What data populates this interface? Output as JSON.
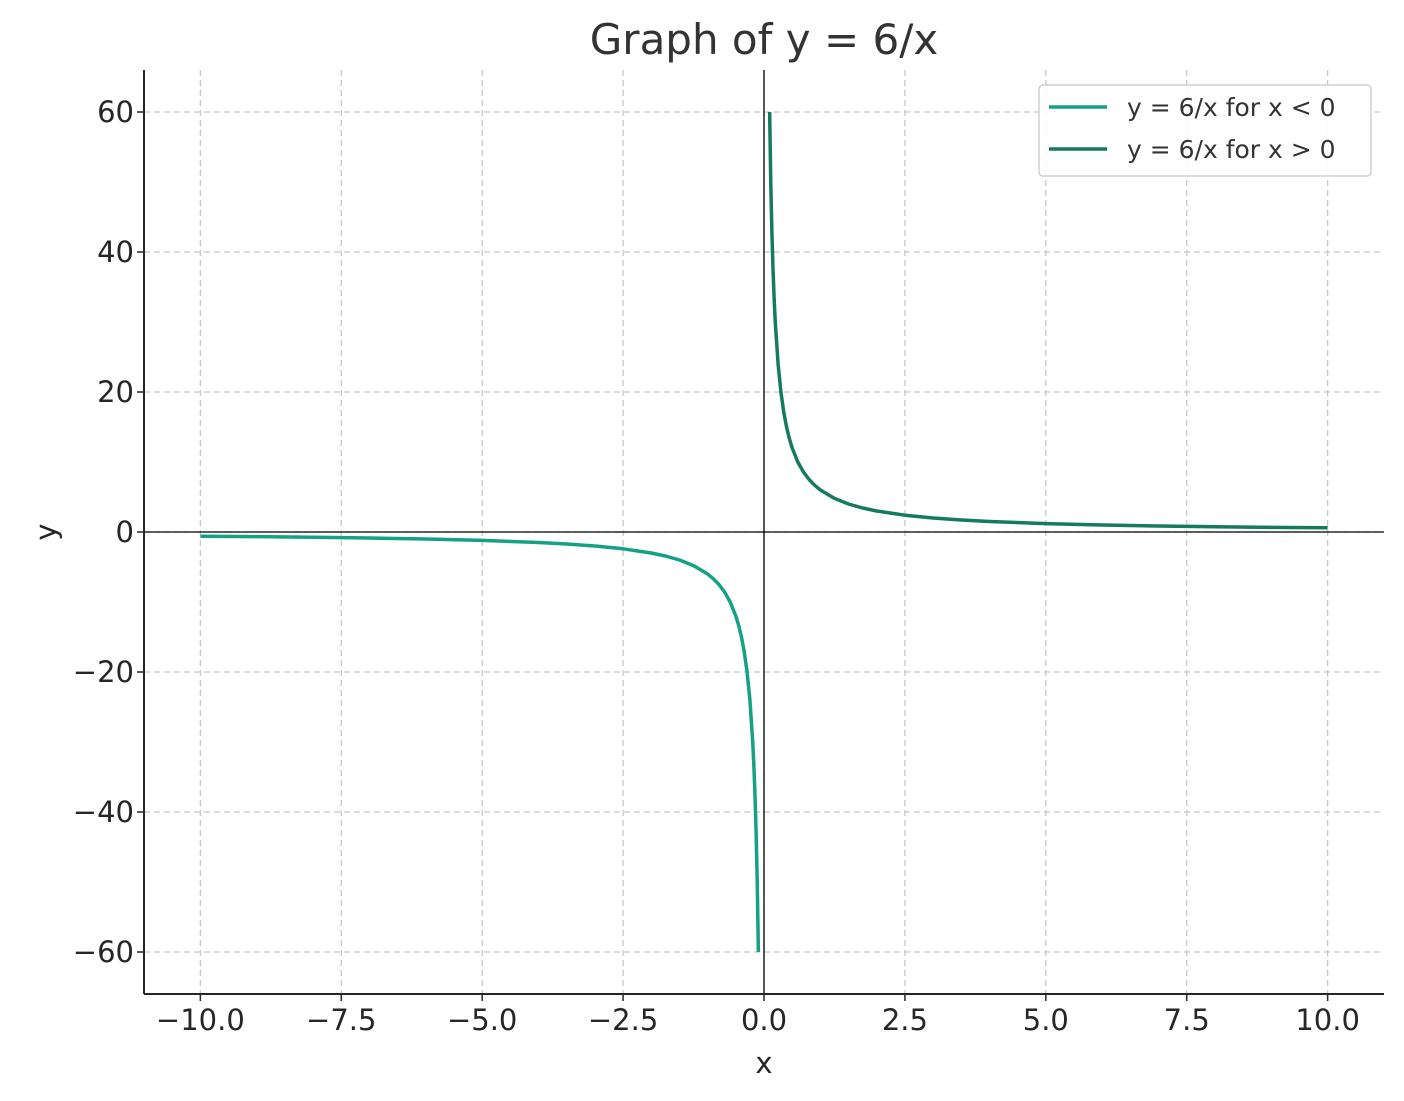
{
  "chart_data": {
    "type": "line",
    "title": "Graph of y = 6/x",
    "xlabel": "x",
    "ylabel": "y",
    "xlim": [
      -11,
      11
    ],
    "ylim": [
      -66,
      66
    ],
    "xticks": [
      -10.0,
      -7.5,
      -5.0,
      -2.5,
      0.0,
      2.5,
      5.0,
      7.5,
      10.0
    ],
    "xtick_labels": [
      "−10.0",
      "−7.5",
      "−5.0",
      "−2.5",
      "0.0",
      "2.5",
      "5.0",
      "7.5",
      "10.0"
    ],
    "yticks": [
      -60,
      -40,
      -20,
      0,
      20,
      40,
      60
    ],
    "ytick_labels": [
      "−60",
      "−40",
      "−20",
      "0",
      "20",
      "40",
      "60"
    ],
    "grid": true,
    "legend_position": "top-right",
    "reference_lines": {
      "x": 0,
      "y": 0
    },
    "series": [
      {
        "name": "y = 6/x for x < 0",
        "color": "#16a085",
        "x": [
          -10.0,
          -9.0,
          -8.0,
          -7.0,
          -6.0,
          -5.0,
          -4.0,
          -3.5,
          -3.0,
          -2.5,
          -2.0,
          -1.75,
          -1.5,
          -1.25,
          -1.0,
          -0.9,
          -0.8,
          -0.7,
          -0.6,
          -0.5,
          -0.45,
          -0.4,
          -0.35,
          -0.3,
          -0.25,
          -0.2,
          -0.18,
          -0.16,
          -0.14,
          -0.12,
          -0.1
        ],
        "y": [
          -0.6,
          -0.667,
          -0.75,
          -0.857,
          -1.0,
          -1.2,
          -1.5,
          -1.714,
          -2.0,
          -2.4,
          -3.0,
          -3.429,
          -4.0,
          -4.8,
          -6.0,
          -6.667,
          -7.5,
          -8.571,
          -10.0,
          -12.0,
          -13.333,
          -15.0,
          -17.143,
          -20.0,
          -24.0,
          -30.0,
          -33.333,
          -37.5,
          -42.857,
          -50.0,
          -60.0
        ]
      },
      {
        "name": "y = 6/x for x > 0",
        "color": "#167a5f",
        "x": [
          0.1,
          0.12,
          0.14,
          0.16,
          0.18,
          0.2,
          0.25,
          0.3,
          0.35,
          0.4,
          0.45,
          0.5,
          0.6,
          0.7,
          0.8,
          0.9,
          1.0,
          1.25,
          1.5,
          1.75,
          2.0,
          2.5,
          3.0,
          3.5,
          4.0,
          5.0,
          6.0,
          7.0,
          8.0,
          9.0,
          10.0
        ],
        "y": [
          60.0,
          50.0,
          42.857,
          37.5,
          33.333,
          30.0,
          24.0,
          20.0,
          17.143,
          15.0,
          13.333,
          12.0,
          10.0,
          8.571,
          7.5,
          6.667,
          6.0,
          4.8,
          4.0,
          3.429,
          3.0,
          2.4,
          2.0,
          1.714,
          1.5,
          1.2,
          1.0,
          0.857,
          0.75,
          0.667,
          0.6
        ]
      }
    ]
  }
}
